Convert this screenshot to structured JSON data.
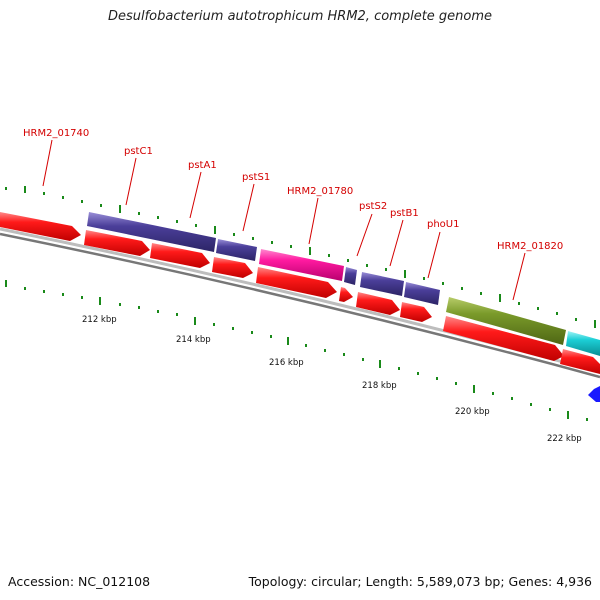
{
  "title": "Desulfobacterium autotrophicum HRM2, complete genome",
  "footer": {
    "accession": "Accession: NC_012108",
    "stats": "Topology: circular; Length: 5,589,073 bp; Genes: 4,936"
  },
  "colors": {
    "cds": "#ff1a1a",
    "pst": "#4b3f9a",
    "hrm2_01780": "#ff1aa0",
    "hrm2_01820": "#7a9a2a",
    "cyan_gene": "#1ccfd6",
    "blue_gene": "#1a1aff",
    "label": "#d40000",
    "tick": "#1a8a1a",
    "backbone": "#808080"
  },
  "gene_labels": [
    {
      "id": "hrm2_01740",
      "text": "HRM2_01740"
    },
    {
      "id": "pstc1",
      "text": "pstC1"
    },
    {
      "id": "psta1",
      "text": "pstA1"
    },
    {
      "id": "psts1",
      "text": "pstS1"
    },
    {
      "id": "hrm2_01780",
      "text": "HRM2_01780"
    },
    {
      "id": "psts2",
      "text": "pstS2"
    },
    {
      "id": "pstb1",
      "text": "pstB1"
    },
    {
      "id": "phou1",
      "text": "phoU1"
    },
    {
      "id": "hrm2_01820",
      "text": "HRM2_01820"
    }
  ],
  "kbp_labels": [
    "212 kbp",
    "214 kbp",
    "216 kbp",
    "218 kbp",
    "220 kbp",
    "222 kbp"
  ]
}
